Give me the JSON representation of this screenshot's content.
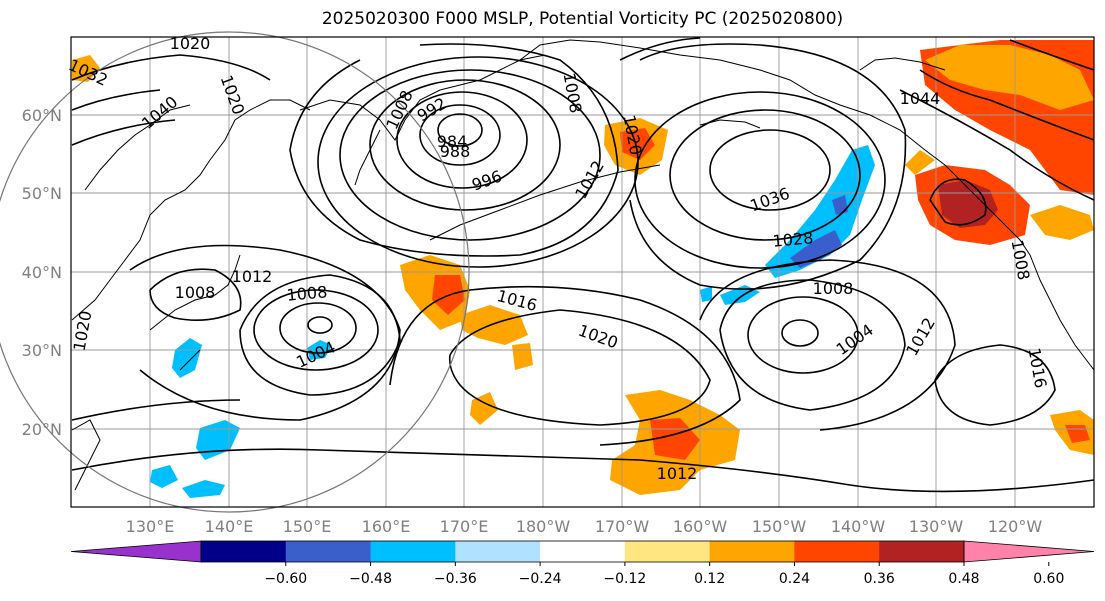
{
  "title": "2025020300 F000 MSLP, Potential Vorticity PC (2025020800)",
  "map": {
    "lon_labels": [
      "130°E",
      "140°E",
      "150°E",
      "160°E",
      "170°E",
      "180°W",
      "170°W",
      "160°W",
      "150°W",
      "140°W",
      "130°W",
      "120°W"
    ],
    "lat_labels": [
      "60°N",
      "50°N",
      "40°N",
      "30°N",
      "20°N"
    ],
    "contour_labels": [
      {
        "text": "1020"
      },
      {
        "text": "1032"
      },
      {
        "text": "1040"
      },
      {
        "text": "1020"
      },
      {
        "text": "1008"
      },
      {
        "text": "992"
      },
      {
        "text": "984"
      },
      {
        "text": "988"
      },
      {
        "text": "996"
      },
      {
        "text": "1008"
      },
      {
        "text": "1012"
      },
      {
        "text": "1020"
      },
      {
        "text": "1036"
      },
      {
        "text": "1028"
      },
      {
        "text": "1044"
      },
      {
        "text": "1012"
      },
      {
        "text": "1008"
      },
      {
        "text": "1008"
      },
      {
        "text": "1004"
      },
      {
        "text": "1016"
      },
      {
        "text": "1020"
      },
      {
        "text": "1008"
      },
      {
        "text": "1004"
      },
      {
        "text": "1012"
      },
      {
        "text": "1016"
      },
      {
        "text": "1012"
      },
      {
        "text": "1008"
      },
      {
        "text": "1020"
      }
    ]
  },
  "colorbar": {
    "ticks": [
      "−0.60",
      "−0.48",
      "−0.36",
      "−0.24",
      "−0.12",
      "0.12",
      "0.24",
      "0.36",
      "0.48",
      "0.60"
    ],
    "colors": [
      "#9932cc",
      "#00008b",
      "#3a5fcd",
      "#00bfff",
      "#b0e2ff",
      "#ffffff",
      "#ffe680",
      "#ffa500",
      "#ff4500",
      "#b22222",
      "#ff82ab"
    ]
  }
}
